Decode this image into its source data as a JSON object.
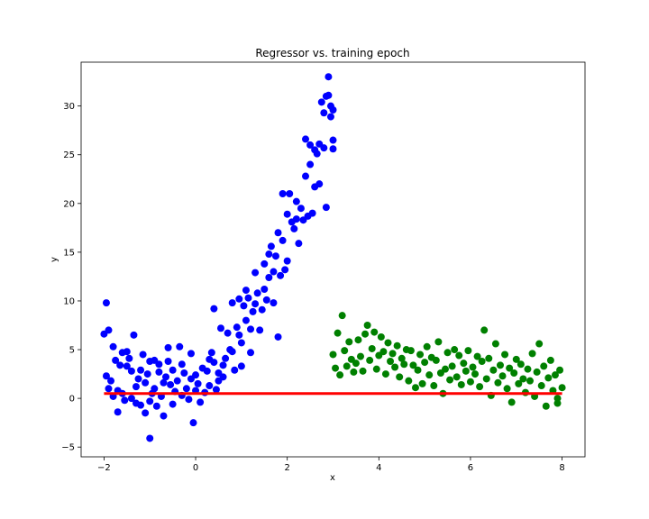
{
  "chart_data": {
    "type": "scatter",
    "title": "Regressor vs. training epoch",
    "xlabel": "x",
    "ylabel": "y",
    "xlim": [
      -2.5,
      8.5
    ],
    "ylim": [
      -6.0,
      34.5
    ],
    "xticks": [
      -2,
      0,
      2,
      4,
      6,
      8
    ],
    "yticks": [
      -5,
      0,
      5,
      10,
      15,
      20,
      25,
      30
    ],
    "grid": false,
    "legend": "none",
    "colors": {
      "train": "#0000ff",
      "test": "#008000",
      "fit": "#ff0000"
    },
    "regression_line": {
      "x": [
        -2.0,
        8.0
      ],
      "y": [
        0.5,
        0.5
      ]
    },
    "series": [
      {
        "color": "#0000ff",
        "points": [
          [
            -2.0,
            6.6
          ],
          [
            -1.95,
            9.8
          ],
          [
            -1.9,
            7.0
          ],
          [
            -1.95,
            2.3
          ],
          [
            -1.9,
            1.0
          ],
          [
            -1.85,
            1.8
          ],
          [
            -1.8,
            0.2
          ],
          [
            -1.8,
            5.3
          ],
          [
            -1.75,
            3.9
          ],
          [
            -1.7,
            0.8
          ],
          [
            -1.7,
            -1.4
          ],
          [
            -1.65,
            3.4
          ],
          [
            -1.6,
            4.7
          ],
          [
            -1.6,
            0.5
          ],
          [
            -1.55,
            -0.2
          ],
          [
            -1.5,
            3.3
          ],
          [
            -1.5,
            4.8
          ],
          [
            -1.45,
            4.1
          ],
          [
            -1.4,
            2.8
          ],
          [
            -1.4,
            0.0
          ],
          [
            -1.35,
            6.5
          ],
          [
            -1.3,
            1.2
          ],
          [
            -1.3,
            -0.5
          ],
          [
            -1.25,
            2.0
          ],
          [
            -1.2,
            2.9
          ],
          [
            -1.2,
            -0.7
          ],
          [
            -1.15,
            4.5
          ],
          [
            -1.1,
            1.6
          ],
          [
            -1.1,
            -1.5
          ],
          [
            -1.05,
            2.5
          ],
          [
            -1.0,
            3.8
          ],
          [
            -1.0,
            -0.3
          ],
          [
            -1.0,
            -4.1
          ],
          [
            -0.95,
            0.5
          ],
          [
            -0.9,
            3.9
          ],
          [
            -0.9,
            1.0
          ],
          [
            -0.85,
            -0.8
          ],
          [
            -0.8,
            2.7
          ],
          [
            -0.8,
            3.5
          ],
          [
            -0.75,
            0.2
          ],
          [
            -0.7,
            -1.8
          ],
          [
            -0.7,
            1.6
          ],
          [
            -0.65,
            2.2
          ],
          [
            -0.6,
            3.8
          ],
          [
            -0.6,
            5.2
          ],
          [
            -0.55,
            1.4
          ],
          [
            -0.5,
            -0.6
          ],
          [
            -0.5,
            2.9
          ],
          [
            -0.45,
            0.7
          ],
          [
            -0.4,
            1.8
          ],
          [
            -0.35,
            5.3
          ],
          [
            -0.3,
            3.5
          ],
          [
            -0.3,
            0.3
          ],
          [
            -0.25,
            2.6
          ],
          [
            -0.2,
            1.0
          ],
          [
            -0.15,
            -0.1
          ],
          [
            -0.1,
            4.6
          ],
          [
            -0.1,
            2.0
          ],
          [
            -0.05,
            -2.5
          ],
          [
            0.0,
            2.4
          ],
          [
            0.0,
            0.8
          ],
          [
            0.05,
            1.5
          ],
          [
            0.1,
            -0.4
          ],
          [
            0.15,
            3.1
          ],
          [
            0.2,
            0.6
          ],
          [
            0.25,
            2.8
          ],
          [
            0.3,
            4.0
          ],
          [
            0.3,
            1.3
          ],
          [
            0.35,
            4.7
          ],
          [
            0.4,
            9.2
          ],
          [
            0.4,
            3.7
          ],
          [
            0.45,
            0.9
          ],
          [
            0.5,
            2.6
          ],
          [
            0.5,
            1.8
          ],
          [
            0.55,
            7.2
          ],
          [
            0.6,
            2.2
          ],
          [
            0.6,
            3.4
          ],
          [
            0.65,
            4.1
          ],
          [
            0.7,
            6.7
          ],
          [
            0.75,
            5.0
          ],
          [
            0.8,
            9.8
          ],
          [
            0.8,
            4.8
          ],
          [
            0.85,
            2.9
          ],
          [
            0.9,
            7.3
          ],
          [
            0.95,
            10.2
          ],
          [
            0.95,
            6.5
          ],
          [
            1.0,
            3.3
          ],
          [
            1.0,
            5.7
          ],
          [
            1.05,
            9.5
          ],
          [
            1.1,
            11.1
          ],
          [
            1.1,
            8.0
          ],
          [
            1.15,
            10.3
          ],
          [
            1.2,
            4.7
          ],
          [
            1.2,
            7.1
          ],
          [
            1.25,
            8.9
          ],
          [
            1.3,
            9.7
          ],
          [
            1.3,
            12.9
          ],
          [
            1.35,
            10.8
          ],
          [
            1.4,
            7.0
          ],
          [
            1.45,
            9.1
          ],
          [
            1.5,
            11.2
          ],
          [
            1.5,
            13.8
          ],
          [
            1.55,
            10.1
          ],
          [
            1.6,
            14.8
          ],
          [
            1.6,
            12.4
          ],
          [
            1.65,
            15.6
          ],
          [
            1.7,
            9.8
          ],
          [
            1.7,
            13.0
          ],
          [
            1.75,
            14.6
          ],
          [
            1.8,
            6.3
          ],
          [
            1.8,
            17.0
          ],
          [
            1.85,
            12.6
          ],
          [
            1.9,
            21.0
          ],
          [
            1.9,
            16.2
          ],
          [
            1.95,
            13.2
          ],
          [
            2.0,
            18.9
          ],
          [
            2.0,
            14.1
          ],
          [
            2.05,
            21.0
          ],
          [
            2.1,
            18.1
          ],
          [
            2.15,
            17.4
          ],
          [
            2.2,
            18.4
          ],
          [
            2.2,
            20.2
          ],
          [
            2.25,
            15.9
          ],
          [
            2.3,
            19.5
          ],
          [
            2.35,
            18.3
          ],
          [
            2.4,
            22.8
          ],
          [
            2.4,
            26.6
          ],
          [
            2.45,
            18.7
          ],
          [
            2.5,
            24.0
          ],
          [
            2.5,
            26.0
          ],
          [
            2.55,
            19.0
          ],
          [
            2.6,
            25.5
          ],
          [
            2.6,
            21.7
          ],
          [
            2.65,
            25.1
          ],
          [
            2.7,
            22.0
          ],
          [
            2.7,
            26.1
          ],
          [
            2.75,
            30.4
          ],
          [
            2.8,
            29.3
          ],
          [
            2.8,
            25.7
          ],
          [
            2.85,
            31.0
          ],
          [
            2.85,
            19.6
          ],
          [
            2.9,
            33.0
          ],
          [
            2.9,
            31.1
          ],
          [
            2.95,
            30.0
          ],
          [
            2.95,
            28.9
          ],
          [
            3.0,
            26.5
          ],
          [
            3.0,
            25.6
          ],
          [
            3.0,
            29.6
          ]
        ]
      },
      {
        "color": "#008000",
        "points": [
          [
            3.0,
            4.5
          ],
          [
            3.05,
            3.1
          ],
          [
            3.1,
            6.7
          ],
          [
            3.15,
            2.4
          ],
          [
            3.2,
            8.5
          ],
          [
            3.25,
            4.9
          ],
          [
            3.3,
            3.3
          ],
          [
            3.35,
            5.8
          ],
          [
            3.4,
            4.0
          ],
          [
            3.45,
            2.7
          ],
          [
            3.5,
            3.6
          ],
          [
            3.55,
            6.0
          ],
          [
            3.6,
            4.3
          ],
          [
            3.65,
            2.8
          ],
          [
            3.7,
            6.6
          ],
          [
            3.75,
            7.5
          ],
          [
            3.8,
            3.9
          ],
          [
            3.85,
            5.1
          ],
          [
            3.9,
            6.8
          ],
          [
            3.95,
            3.0
          ],
          [
            4.0,
            4.4
          ],
          [
            4.05,
            6.3
          ],
          [
            4.1,
            4.8
          ],
          [
            4.15,
            2.5
          ],
          [
            4.2,
            5.7
          ],
          [
            4.25,
            3.8
          ],
          [
            4.3,
            4.6
          ],
          [
            4.35,
            3.2
          ],
          [
            4.4,
            5.4
          ],
          [
            4.45,
            2.2
          ],
          [
            4.5,
            4.1
          ],
          [
            4.55,
            3.5
          ],
          [
            4.6,
            5.0
          ],
          [
            4.65,
            1.8
          ],
          [
            4.7,
            4.9
          ],
          [
            4.75,
            3.4
          ],
          [
            4.8,
            1.1
          ],
          [
            4.85,
            2.9
          ],
          [
            4.9,
            4.5
          ],
          [
            4.95,
            1.5
          ],
          [
            5.0,
            3.7
          ],
          [
            5.05,
            5.3
          ],
          [
            5.1,
            2.4
          ],
          [
            5.15,
            4.2
          ],
          [
            5.2,
            1.3
          ],
          [
            5.25,
            3.9
          ],
          [
            5.3,
            5.8
          ],
          [
            5.35,
            2.6
          ],
          [
            5.4,
            0.5
          ],
          [
            5.45,
            3.0
          ],
          [
            5.5,
            4.7
          ],
          [
            5.55,
            1.9
          ],
          [
            5.6,
            3.3
          ],
          [
            5.65,
            5.0
          ],
          [
            5.7,
            2.2
          ],
          [
            5.75,
            4.4
          ],
          [
            5.8,
            1.4
          ],
          [
            5.85,
            3.6
          ],
          [
            5.9,
            2.8
          ],
          [
            5.95,
            4.9
          ],
          [
            6.0,
            1.7
          ],
          [
            6.05,
            3.2
          ],
          [
            6.1,
            2.5
          ],
          [
            6.15,
            4.3
          ],
          [
            6.2,
            1.2
          ],
          [
            6.25,
            3.8
          ],
          [
            6.3,
            7.0
          ],
          [
            6.35,
            2.0
          ],
          [
            6.4,
            4.1
          ],
          [
            6.45,
            0.3
          ],
          [
            6.5,
            2.9
          ],
          [
            6.55,
            5.6
          ],
          [
            6.6,
            1.6
          ],
          [
            6.65,
            3.4
          ],
          [
            6.7,
            2.3
          ],
          [
            6.75,
            4.5
          ],
          [
            6.8,
            1.0
          ],
          [
            6.85,
            3.1
          ],
          [
            6.9,
            -0.4
          ],
          [
            6.95,
            2.6
          ],
          [
            7.0,
            4.0
          ],
          [
            7.05,
            1.5
          ],
          [
            7.1,
            3.5
          ],
          [
            7.15,
            2.0
          ],
          [
            7.2,
            0.6
          ],
          [
            7.25,
            3.0
          ],
          [
            7.3,
            1.8
          ],
          [
            7.35,
            4.6
          ],
          [
            7.4,
            0.2
          ],
          [
            7.45,
            2.7
          ],
          [
            7.5,
            5.6
          ],
          [
            7.55,
            1.3
          ],
          [
            7.6,
            3.3
          ],
          [
            7.65,
            -0.8
          ],
          [
            7.7,
            2.1
          ],
          [
            7.75,
            3.9
          ],
          [
            7.8,
            0.8
          ],
          [
            7.85,
            2.4
          ],
          [
            7.9,
            -0.5
          ],
          [
            7.95,
            2.9
          ],
          [
            8.0,
            1.1
          ],
          [
            7.9,
            0.0
          ]
        ]
      }
    ]
  }
}
